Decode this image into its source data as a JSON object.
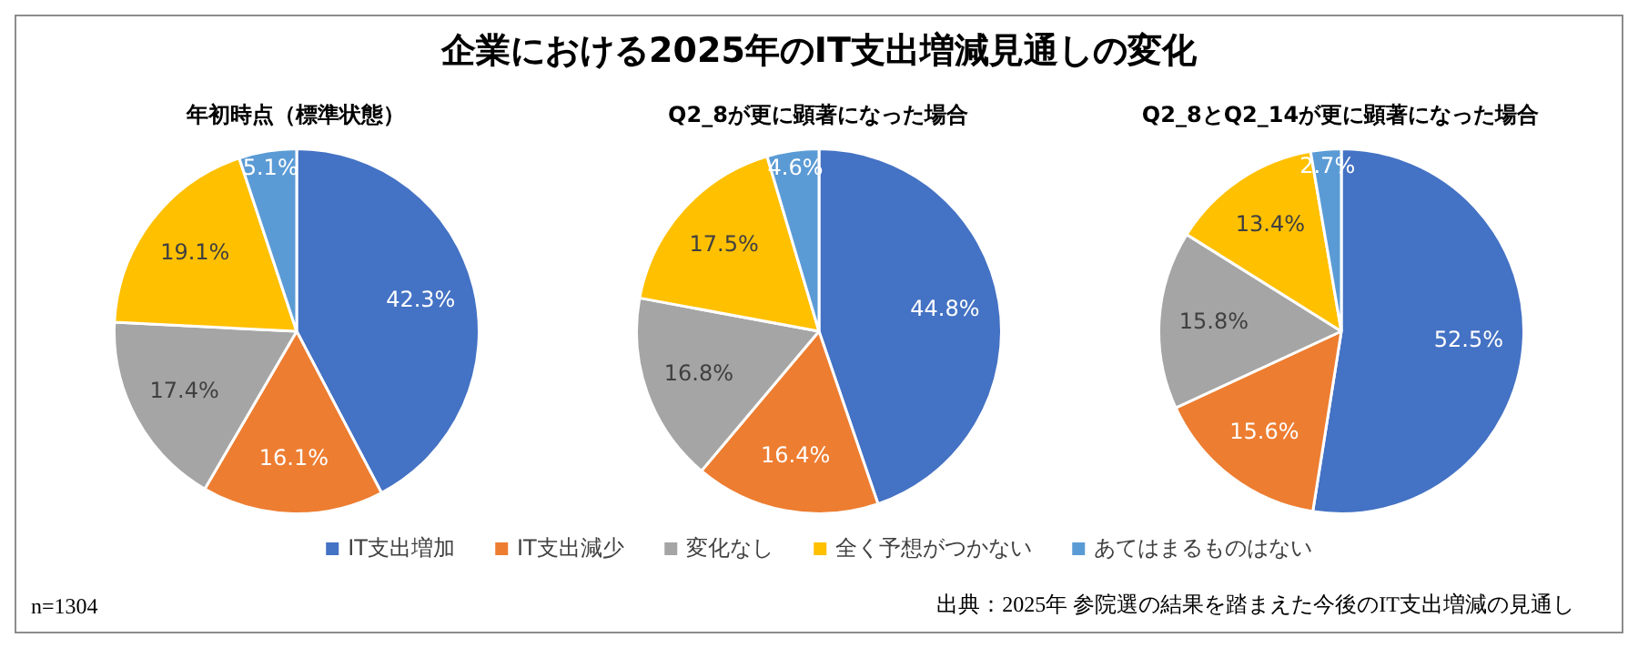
{
  "chart_data": [
    {
      "type": "other",
      "title": "企業における2025年のIT支出増減見通しの変化",
      "annotations": [
        "n=1304",
        "出典：2025年 参院選の結果を踏まえた今後のIT支出増減の見通し"
      ]
    },
    {
      "type": "pie",
      "title": "年初時点（標準状態）",
      "categories": [
        "IT支出増加",
        "IT支出減少",
        "変化なし",
        "全く予想がつかない",
        "あてはまるものはない"
      ],
      "values": [
        42.3,
        16.1,
        17.4,
        19.1,
        5.1
      ],
      "colors": [
        "#4472c4",
        "#ed7d31",
        "#a5a5a5",
        "#ffc000",
        "#5b9bd5"
      ],
      "value_labels": [
        "42.3%",
        "16.1%",
        "17.4%",
        "19.1%",
        "5.1%"
      ],
      "legend": "bottom"
    },
    {
      "type": "pie",
      "title": "Q2_8が更に顕著になった場合",
      "values": [
        44.8,
        16.4,
        16.8,
        17.5,
        4.6
      ],
      "colors": [
        "#4472c4",
        "#ed7d31",
        "#a5a5a5",
        "#ffc000",
        "#5b9bd5"
      ],
      "value_labels": [
        "44.8%",
        "16.4%",
        "16.8%",
        "17.5%",
        "4.6%"
      ]
    },
    {
      "type": "pie",
      "title": "Q2_8とQ2_14が更に顕著になった場合",
      "values": [
        52.5,
        15.6,
        15.8,
        13.4,
        2.7
      ],
      "colors": [
        "#4472c4",
        "#ed7d31",
        "#a5a5a5",
        "#ffc000",
        "#5b9bd5"
      ],
      "value_labels": [
        "52.5%",
        "15.6%",
        "15.8%",
        "13.4%",
        "2.7%"
      ]
    }
  ]
}
